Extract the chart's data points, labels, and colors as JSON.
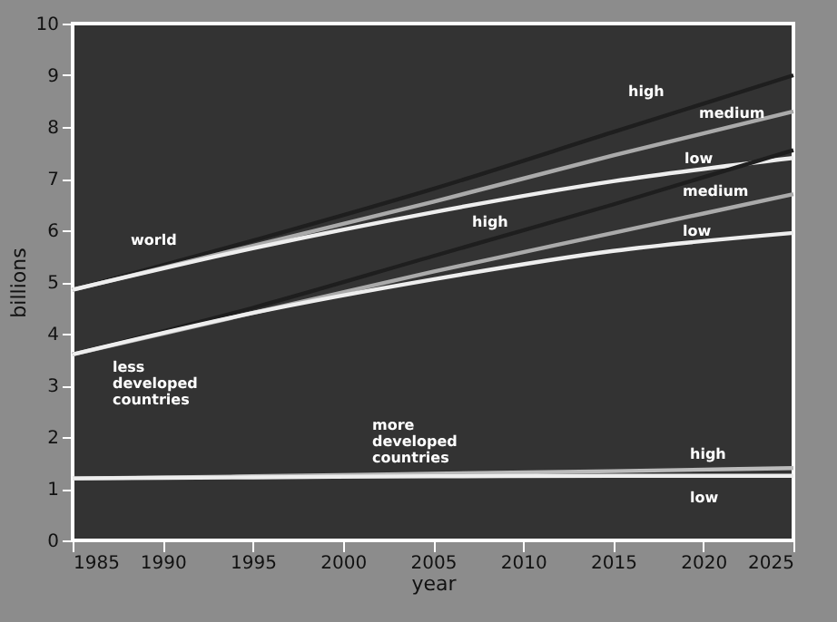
{
  "chart_data": {
    "type": "line",
    "xlabel": "year",
    "ylabel": "billions",
    "x": [
      1985,
      1995,
      2005,
      2015,
      2025
    ],
    "xlim": [
      1985,
      2025
    ],
    "xticks": [
      1985,
      1990,
      1995,
      2000,
      2005,
      2010,
      2015,
      2020,
      2025
    ],
    "ylim": [
      0,
      10
    ],
    "yticks": [
      0,
      1,
      2,
      3,
      4,
      5,
      6,
      7,
      8,
      9,
      10
    ],
    "grid": false,
    "marker": "none",
    "line_style": "solid",
    "series": [
      {
        "color": "#1e1e1e",
        "values": [
          4.85,
          5.8,
          6.8,
          7.9,
          9.0
        ]
      },
      {
        "color": "#aaaaaa",
        "values": [
          4.85,
          5.7,
          6.55,
          7.45,
          8.3
        ]
      },
      {
        "color": "#eeeeee",
        "values": [
          4.85,
          5.65,
          6.35,
          6.95,
          7.4
        ]
      },
      {
        "color": "#1e1e1e",
        "values": [
          3.6,
          4.5,
          5.5,
          6.5,
          7.55
        ]
      },
      {
        "color": "#aaaaaa",
        "values": [
          3.6,
          4.4,
          5.2,
          5.95,
          6.7
        ]
      },
      {
        "color": "#eeeeee",
        "values": [
          3.6,
          4.4,
          5.05,
          5.6,
          5.95
        ]
      },
      {
        "color": "#bbbbbb",
        "values": [
          1.2,
          1.24,
          1.29,
          1.34,
          1.4
        ]
      },
      {
        "color": "#eeeeee",
        "values": [
          1.2,
          1.22,
          1.24,
          1.25,
          1.25
        ]
      }
    ],
    "annotations": [
      "world",
      "high",
      "medium",
      "low",
      "high",
      "medium",
      "low",
      "less developed countries",
      "more developed countries",
      "high",
      "low"
    ]
  }
}
